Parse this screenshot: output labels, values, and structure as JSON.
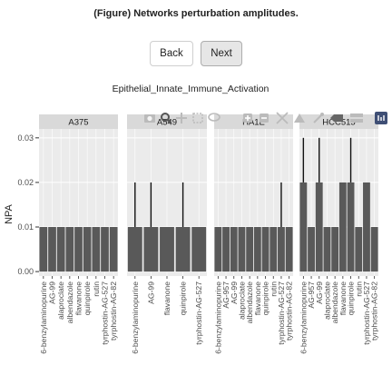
{
  "figure_title": "(Figure) Networks perturbation amplitudes.",
  "nav": {
    "back_label": "Back",
    "next_label": "Next"
  },
  "toolbar": {
    "icons": [
      "camera-icon",
      "zoom-icon",
      "pan-icon",
      "box-select-icon",
      "lasso-select-icon",
      "zoom-in-icon",
      "zoom-out-icon",
      "autoscale-icon",
      "reset-axes-icon",
      "spike-lines-icon",
      "hover-closest-icon",
      "hover-compare-icon",
      "plotly-logo-icon"
    ]
  },
  "chart_data": {
    "type": "bar",
    "title": "Epithelial_Innate_Immune_Activation",
    "ylabel": "NPA",
    "ylim": [
      -0.001,
      0.032
    ],
    "yticks": [
      0.0,
      0.01,
      0.02,
      0.03
    ],
    "ytick_labels": [
      "0.00",
      "0.01",
      "0.02",
      "0.03"
    ],
    "grid": true,
    "colors": {
      "bar": "#595959",
      "error": "#111111",
      "panel_bg": "#ebebeb",
      "strip_bg": "#d9d9d9",
      "grid": "#ffffff"
    },
    "facets": [
      {
        "name": "A375",
        "categories": [
          "6-benzylaminopurine",
          "AG-99",
          "alaproclate",
          "albendazole",
          "flavanone",
          "quinpirole",
          "rutin",
          "tyrphostin-AG-527",
          "tyrphostin-AG-82"
        ],
        "values": [
          0.01,
          0.01,
          0.01,
          0.01,
          0.01,
          0.01,
          0.01,
          0.01,
          0.01
        ],
        "errors": [
          0,
          0,
          0,
          0,
          0,
          0,
          0,
          0,
          0
        ]
      },
      {
        "name": "A549",
        "categories": [
          "6-benzylaminopurine",
          "AG-99",
          "flavanone",
          "quinpirole",
          "tyrphostin-AG-527"
        ],
        "values": [
          0.01,
          0.01,
          0.01,
          0.01,
          0.01
        ],
        "errors": [
          0.01,
          0.01,
          0,
          0.01,
          0
        ]
      },
      {
        "name": "HA1E",
        "categories": [
          "6-benzylaminopurine",
          "AG-957",
          "AG-99",
          "alaproclate",
          "albendazole",
          "flavanone",
          "quinpirole",
          "rutin",
          "tyrphostin-AG-527",
          "tyrphostin-AG-82"
        ],
        "values": [
          0.01,
          0.01,
          0.01,
          0.01,
          0.01,
          0.01,
          0.01,
          0.01,
          0.01,
          0.01
        ],
        "errors": [
          0,
          0,
          0,
          0,
          0,
          0,
          0,
          0,
          0.01,
          0
        ]
      },
      {
        "name": "HCC515",
        "categories": [
          "6-benzylaminopurine",
          "AG-957",
          "AG-99",
          "alaproclate",
          "albendazole",
          "flavanone",
          "quinpirole",
          "rutin",
          "tyrphostin-AG-527",
          "tyrphostin-AG-82"
        ],
        "values": [
          0.02,
          0.01,
          0.02,
          0.01,
          0.01,
          0.02,
          0.02,
          0.01,
          0.02,
          0.01
        ],
        "errors": [
          0.01,
          0,
          0.01,
          0,
          0,
          0,
          0.01,
          0,
          0,
          0
        ]
      }
    ]
  }
}
